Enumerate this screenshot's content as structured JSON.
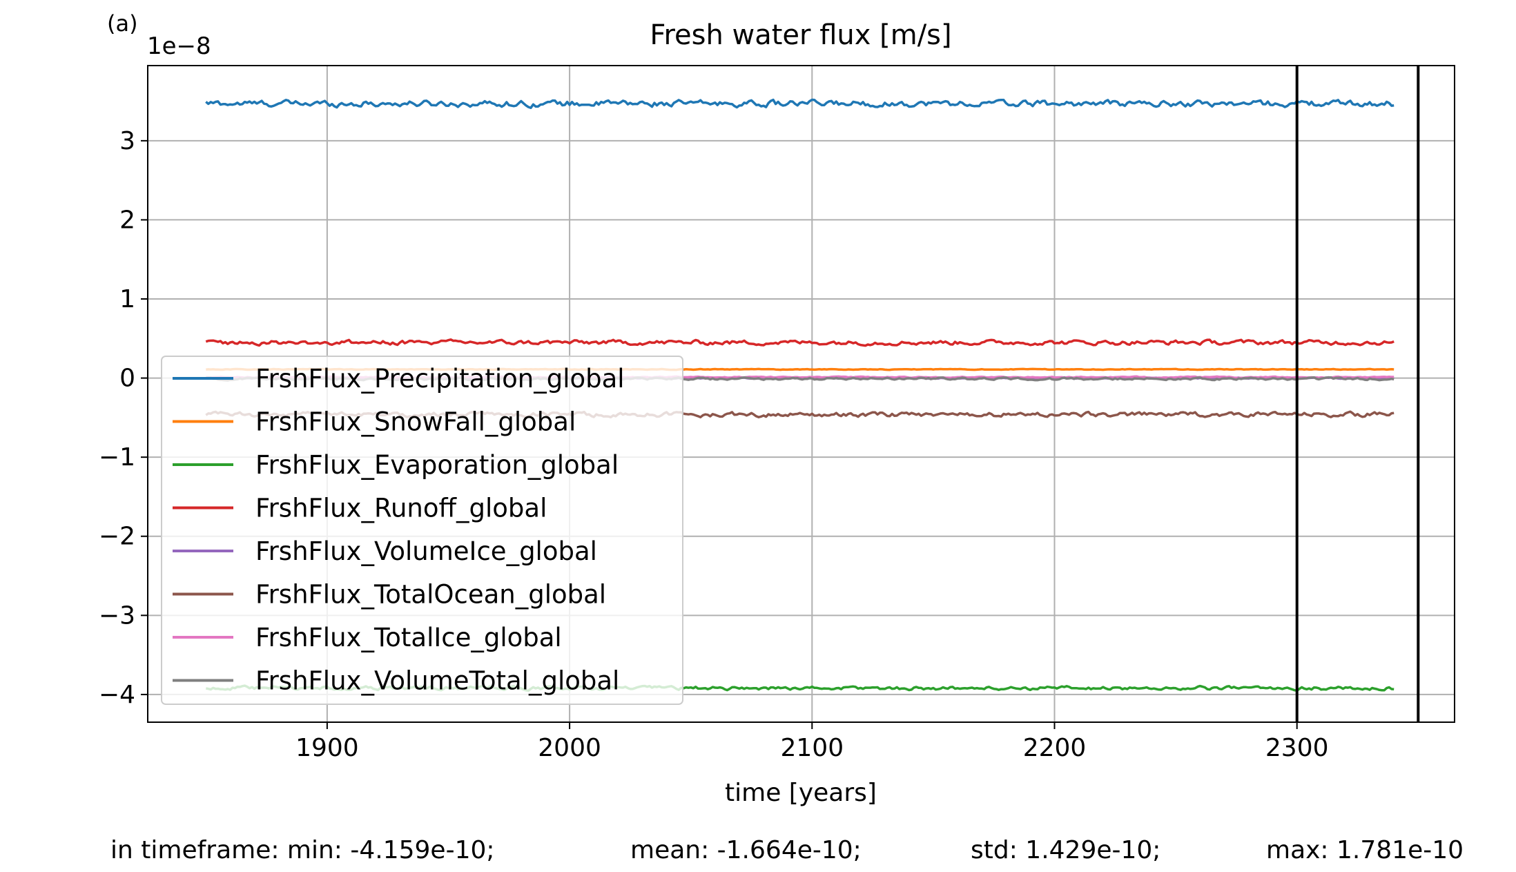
{
  "panel_label": "(a)",
  "chart_data": {
    "type": "line",
    "title": "Fresh water flux [m/s]",
    "xlabel": "time [years]",
    "ylabel": "",
    "y_scale_offset": "1e−8",
    "xlim": [
      1826,
      2365
    ],
    "ylim": [
      -4.35,
      3.95
    ],
    "xticks": [
      1900,
      2000,
      2100,
      2200,
      2300
    ],
    "xtick_labels": [
      "1900",
      "2000",
      "2100",
      "2200",
      "2300"
    ],
    "yticks": [
      -4,
      -3,
      -2,
      -1,
      0,
      1,
      2,
      3
    ],
    "ytick_labels": [
      "−4",
      "−3",
      "−2",
      "−1",
      "0",
      "1",
      "2",
      "3"
    ],
    "grid": true,
    "legend_position": "center-left",
    "x_start": 1850,
    "x_end": 2340,
    "vertical_lines": [
      2300,
      2350
    ],
    "series": [
      {
        "name": "FrshFlux_Precipitation_global",
        "color": "#1f77b4",
        "mean": 3.47,
        "noise": 0.035
      },
      {
        "name": "FrshFlux_SnowFall_global",
        "color": "#ff7f0e",
        "mean": 0.11,
        "noise": 0.004
      },
      {
        "name": "FrshFlux_Evaporation_global",
        "color": "#2ca02c",
        "mean": -3.92,
        "noise": 0.02
      },
      {
        "name": "FrshFlux_Runoff_global",
        "color": "#d62728",
        "mean": 0.45,
        "noise": 0.025
      },
      {
        "name": "FrshFlux_VolumeIce_global",
        "color": "#9467bd",
        "mean": 0.0,
        "noise": 0.006
      },
      {
        "name": "FrshFlux_TotalOcean_global",
        "color": "#8c564b",
        "mean": -0.46,
        "noise": 0.025
      },
      {
        "name": "FrshFlux_TotalIce_global",
        "color": "#e377c2",
        "mean": 0.01,
        "noise": 0.006
      },
      {
        "name": "FrshFlux_VolumeTotal_global",
        "color": "#7f7f7f",
        "mean": -0.01,
        "noise": 0.012
      }
    ]
  },
  "stats": {
    "min": "in timeframe: min: -4.159e-10;",
    "mean": "mean: -1.664e-10;",
    "std": "std: 1.429e-10;",
    "max": "max: 1.781e-10"
  }
}
